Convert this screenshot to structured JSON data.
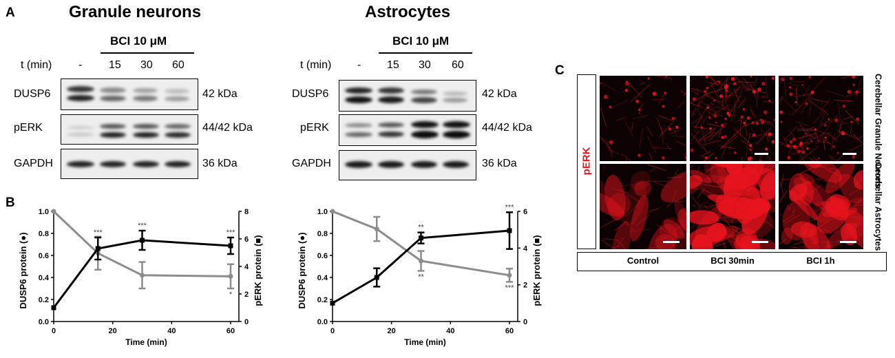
{
  "panels": {
    "a": "A",
    "b": "B",
    "c": "C"
  },
  "titles": {
    "neurons": "Granule neurons",
    "astro": "Astrocytes"
  },
  "blot": {
    "treatment": "BCI 10 μM",
    "time_label": "t (min)",
    "times": [
      "-",
      "15",
      "30",
      "60"
    ],
    "rows": [
      "DUSP6",
      "pERK",
      "GAPDH"
    ],
    "kda": [
      "42 kDa",
      "44/42 kDa",
      "36 kDa"
    ]
  },
  "colors": {
    "dusp6_series": "#8c8c8c",
    "perk_series": "#000000",
    "microscopy_red": "#e8141e",
    "pERK_label": "#e0141c"
  },
  "chart_data": [
    {
      "type": "line",
      "title": "Granule neurons",
      "xlabel": "Time (min)",
      "ylabel": "DUSP6 protein (●)",
      "y2label": "pERK protein (■)",
      "x": [
        0,
        15,
        30,
        60
      ],
      "xlim": [
        0,
        60
      ],
      "xticks": [
        "0",
        "20",
        "40",
        "60"
      ],
      "ylim": [
        0,
        1.0
      ],
      "yticks": [
        "0.0",
        "0.2",
        "0.4",
        "0.6",
        "0.8",
        "1.0"
      ],
      "y2lim": [
        0,
        8
      ],
      "y2ticks": [
        "0",
        "2",
        "4",
        "6",
        "8"
      ],
      "series": [
        {
          "axis": "left",
          "values": [
            1.0,
            0.62,
            0.42,
            0.41
          ],
          "errors": [
            0,
            0.15,
            0.12,
            0.11
          ],
          "sig": [
            "",
            "",
            "",
            "*"
          ]
        },
        {
          "axis": "right",
          "values": [
            1.0,
            5.3,
            5.9,
            5.5
          ],
          "errors": [
            0,
            0.8,
            0.7,
            0.6
          ],
          "sig": [
            "",
            "***",
            "***",
            "***"
          ]
        }
      ]
    },
    {
      "type": "line",
      "title": "Astrocytes",
      "xlabel": "Time (min)",
      "ylabel": "DUSP6 protein (●)",
      "y2label": "pERK protein (■)",
      "x": [
        0,
        15,
        30,
        60
      ],
      "xlim": [
        0,
        60
      ],
      "xticks": [
        "0",
        "20",
        "40",
        "60"
      ],
      "ylim": [
        0,
        1.0
      ],
      "yticks": [
        "0.0",
        "0.2",
        "0.4",
        "0.6",
        "0.8",
        "1.0"
      ],
      "y2lim": [
        0,
        6
      ],
      "y2ticks": [
        "0",
        "2",
        "4",
        "6"
      ],
      "series": [
        {
          "axis": "left",
          "values": [
            1.0,
            0.84,
            0.55,
            0.42
          ],
          "errors": [
            0,
            0.11,
            0.09,
            0.06
          ],
          "sig": [
            "",
            "",
            "**",
            "***"
          ]
        },
        {
          "axis": "right",
          "values": [
            1.0,
            2.4,
            4.55,
            4.95
          ],
          "errors": [
            0,
            0.5,
            0.3,
            1.0
          ],
          "sig": [
            "",
            "",
            "**",
            "***"
          ]
        }
      ]
    }
  ],
  "microscopy": {
    "stain": "pERK",
    "rows": [
      "Cerebellar Granule Neurons",
      "Cerebellar Astrocytes"
    ],
    "columns": [
      "Control",
      "BCI 30min",
      "BCI 1h"
    ]
  }
}
